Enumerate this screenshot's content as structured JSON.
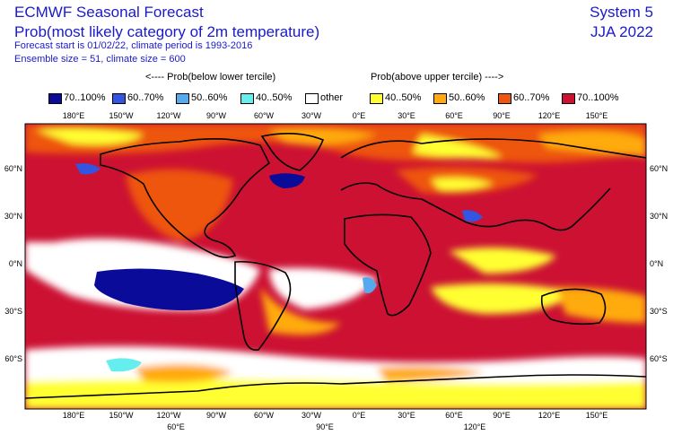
{
  "header": {
    "title": "ECMWF Seasonal Forecast",
    "subtitle": "Prob(most likely category of 2m temperature)",
    "forecast_info": "Forecast start is 01/02/22, climate period is 1993-2016",
    "ensemble_info": "Ensemble size = 51, climate size = 600",
    "system": "System 5",
    "season": "JJA 2022"
  },
  "legend": {
    "below_header": "<---- Prob(below lower tercile)",
    "above_header": "Prob(above upper tercile) ---->",
    "items": [
      {
        "label": "70..100%",
        "color": "#0b0b9a"
      },
      {
        "label": "60..70%",
        "color": "#3355e0"
      },
      {
        "label": "50..60%",
        "color": "#55aaee"
      },
      {
        "label": "40..50%",
        "color": "#66eeee"
      },
      {
        "label": "other",
        "color": "#ffffff"
      },
      {
        "label": "40..50%",
        "color": "#ffff33"
      },
      {
        "label": "50..60%",
        "color": "#ffaa11"
      },
      {
        "label": "60..70%",
        "color": "#ee5511"
      },
      {
        "label": "70..100%",
        "color": "#cc1133"
      }
    ]
  },
  "map": {
    "top_lon_ticks": [
      "180°E",
      "150°W",
      "120°W",
      "90°W",
      "60°W",
      "30°W",
      "0°E",
      "30°E",
      "60°E",
      "90°E",
      "120°E",
      "150°E"
    ],
    "bottom_lon_ticks": [
      "180°E",
      "150°W",
      "120°W",
      "90°W",
      "60°W",
      "30°W",
      "0°E",
      "30°E",
      "60°E",
      "90°E",
      "120°E",
      "150°E"
    ],
    "bottom_extra_ticks": [
      "60°E",
      "90°E",
      "120°E"
    ],
    "left_lat_ticks": [
      "60°N",
      "30°N",
      "0°N",
      "30°S",
      "60°S"
    ],
    "right_lat_ticks": [
      "60°N",
      "30°N",
      "0°N",
      "30°S",
      "60°S"
    ]
  }
}
